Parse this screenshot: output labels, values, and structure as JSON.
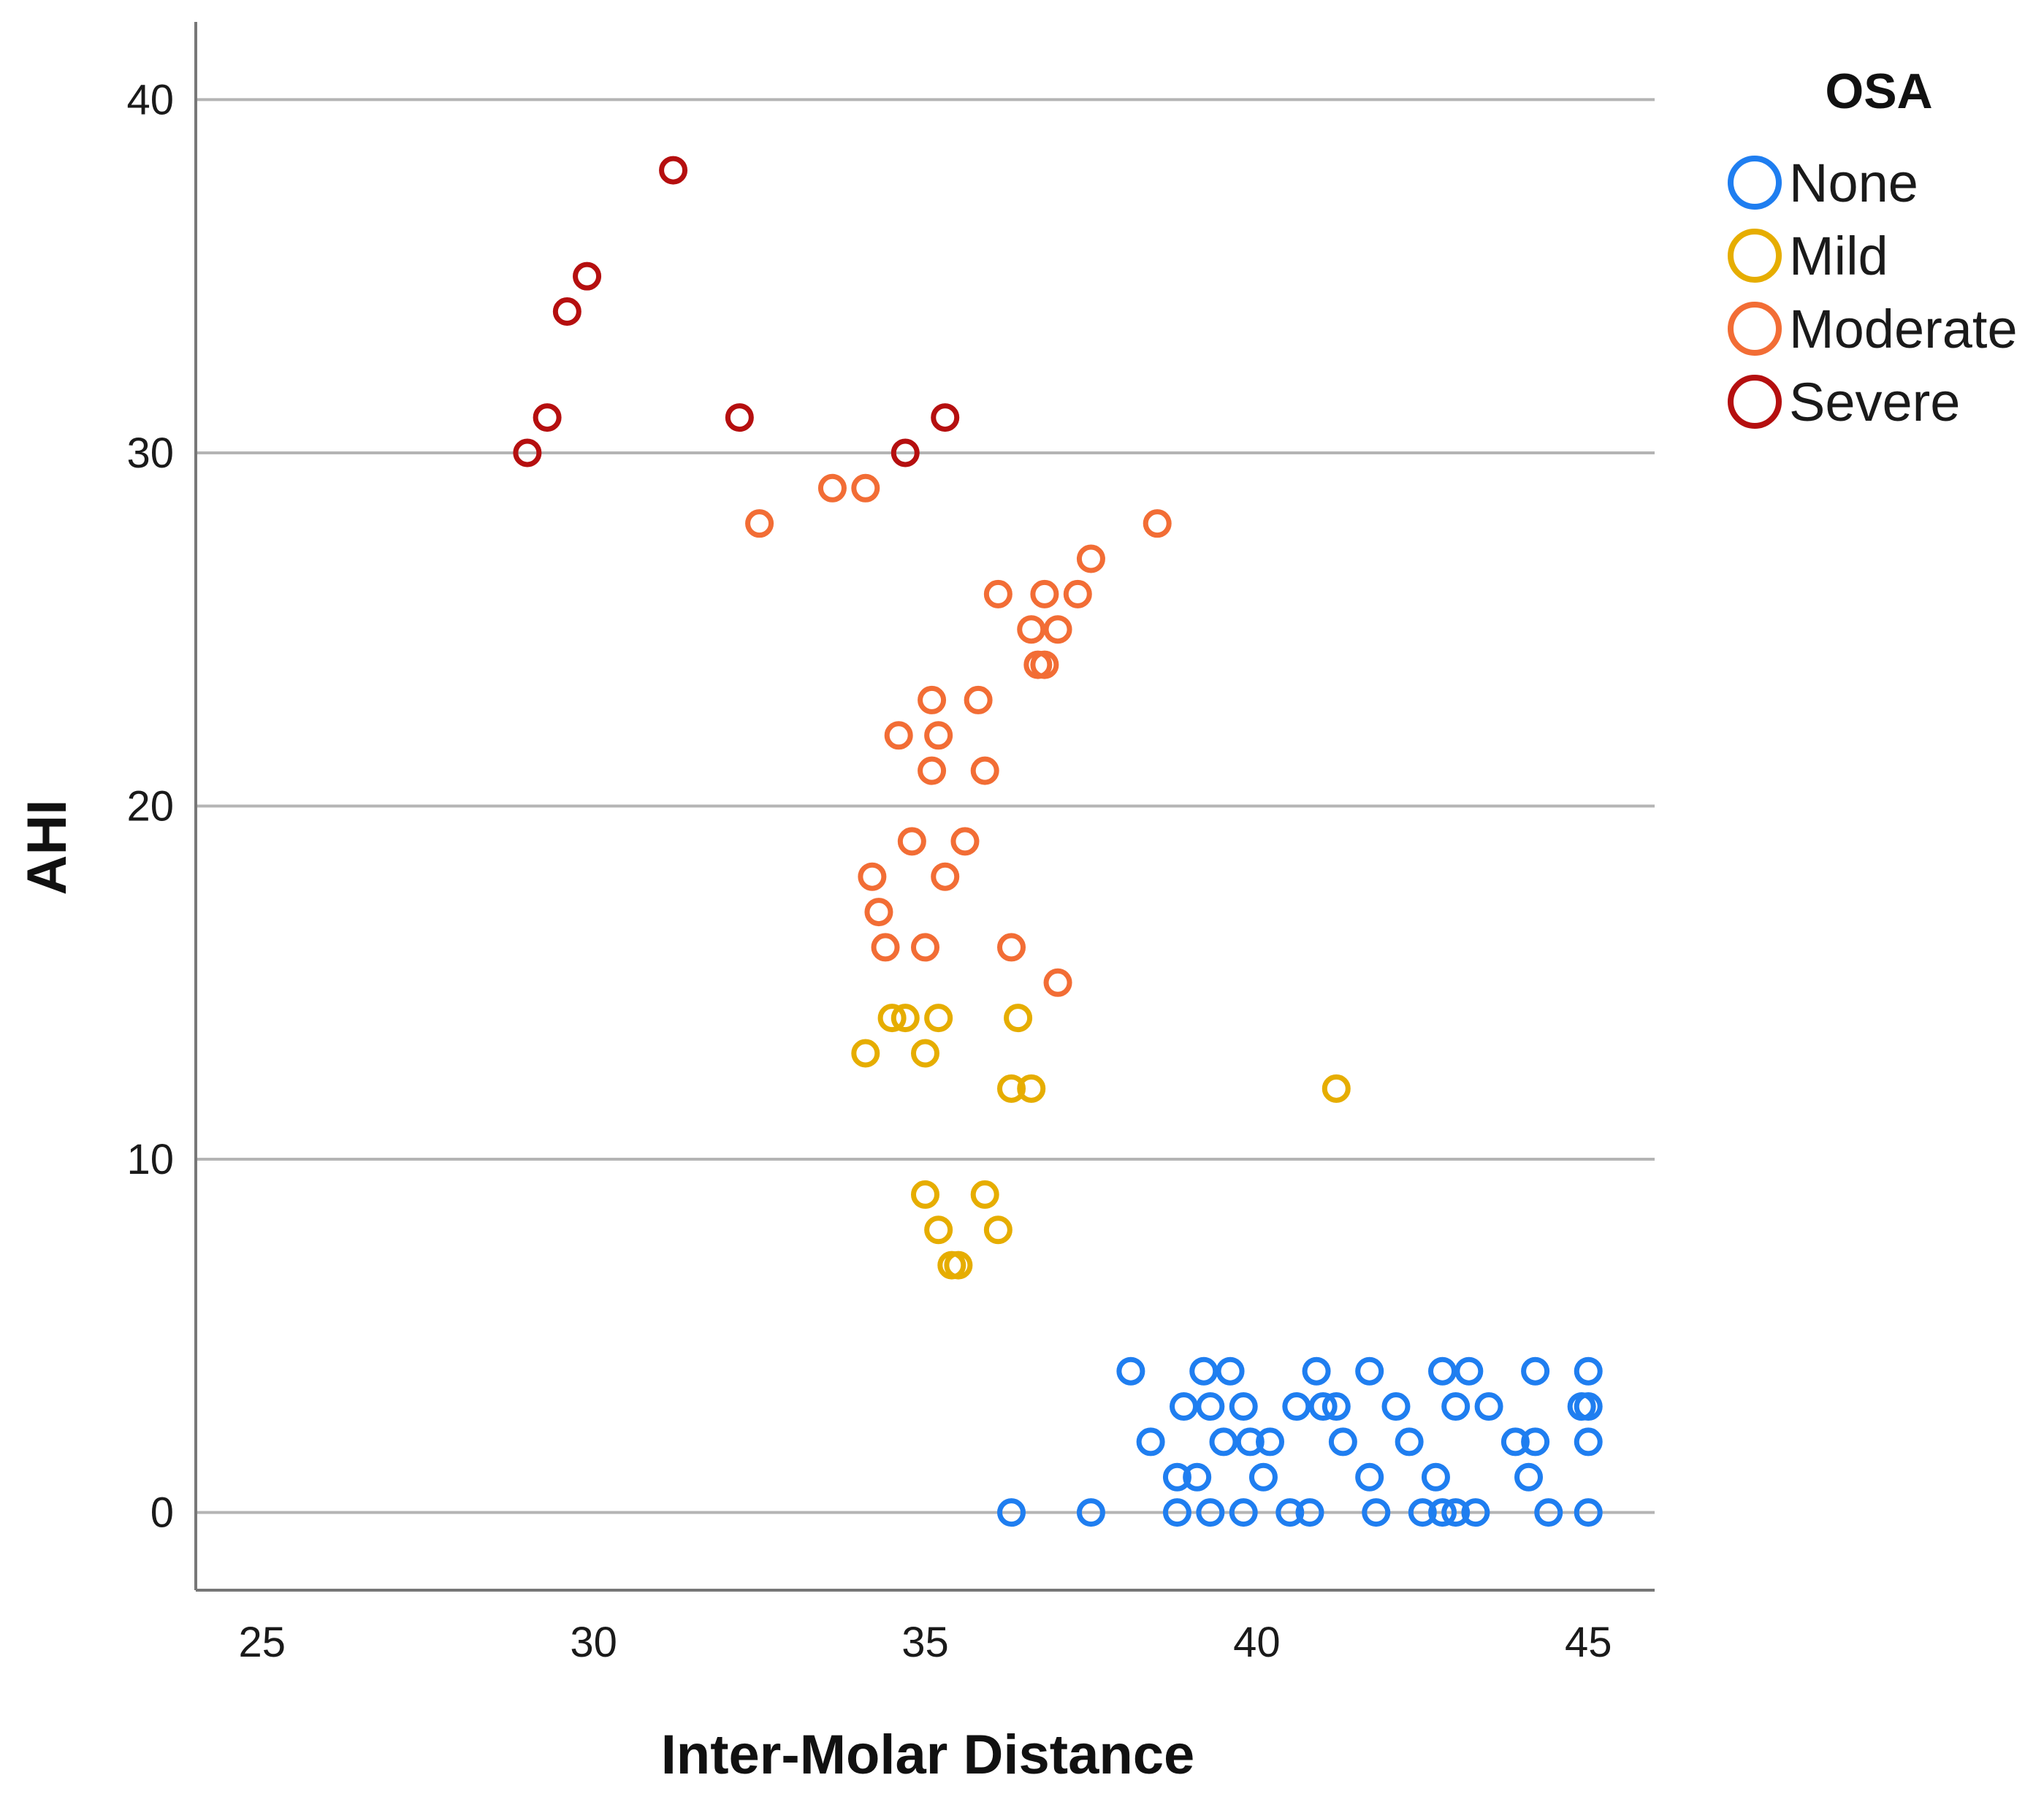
{
  "chart_data": {
    "type": "scatter",
    "title": "",
    "xlabel": "Inter-Molar Distance",
    "ylabel": "AHI",
    "xlim": [
      24,
      46
    ],
    "ylim": [
      -2.2,
      42.2
    ],
    "x_ticks": [
      "25",
      "30",
      "35",
      "40",
      "45"
    ],
    "y_ticks": [
      "0",
      "10",
      "20",
      "30",
      "40"
    ],
    "grid": "horizontal",
    "legend": {
      "title": "OSA",
      "placement": "right",
      "entries": [
        "None",
        "Mild",
        "Moderate",
        "Severe"
      ]
    },
    "series": [
      {
        "name": "None",
        "color": "#1f7ef0",
        "points": [
          [
            38.1,
            4
          ],
          [
            39.2,
            4
          ],
          [
            39.6,
            4
          ],
          [
            40.9,
            4
          ],
          [
            41.7,
            4
          ],
          [
            42.8,
            4
          ],
          [
            43.2,
            4
          ],
          [
            44.2,
            4
          ],
          [
            45.0,
            4
          ],
          [
            38.9,
            3
          ],
          [
            39.3,
            3
          ],
          [
            39.8,
            3
          ],
          [
            40.6,
            3
          ],
          [
            41.0,
            3
          ],
          [
            41.2,
            3
          ],
          [
            42.1,
            3
          ],
          [
            43.0,
            3
          ],
          [
            43.5,
            3
          ],
          [
            44.9,
            3
          ],
          [
            45.0,
            3
          ],
          [
            38.4,
            2
          ],
          [
            39.5,
            2
          ],
          [
            39.9,
            2
          ],
          [
            40.2,
            2
          ],
          [
            41.3,
            2
          ],
          [
            42.3,
            2
          ],
          [
            43.9,
            2
          ],
          [
            44.2,
            2
          ],
          [
            45.0,
            2
          ],
          [
            38.8,
            1
          ],
          [
            39.1,
            1
          ],
          [
            40.1,
            1
          ],
          [
            41.7,
            1
          ],
          [
            42.7,
            1
          ],
          [
            44.1,
            1
          ],
          [
            36.3,
            0
          ],
          [
            37.5,
            0
          ],
          [
            38.8,
            0
          ],
          [
            39.3,
            0
          ],
          [
            39.8,
            0
          ],
          [
            40.5,
            0
          ],
          [
            40.8,
            0
          ],
          [
            41.8,
            0
          ],
          [
            42.5,
            0
          ],
          [
            42.8,
            0
          ],
          [
            43.0,
            0
          ],
          [
            43.3,
            0
          ],
          [
            44.4,
            0
          ],
          [
            45.0,
            0
          ]
        ]
      },
      {
        "name": "Mild",
        "color": "#e6ad00",
        "points": [
          [
            34.5,
            14
          ],
          [
            34.7,
            14
          ],
          [
            35.2,
            14
          ],
          [
            36.4,
            14
          ],
          [
            34.1,
            13
          ],
          [
            35.0,
            13
          ],
          [
            36.3,
            12
          ],
          [
            36.6,
            12
          ],
          [
            41.2,
            12
          ],
          [
            35.0,
            9
          ],
          [
            35.9,
            9
          ],
          [
            35.2,
            8
          ],
          [
            36.1,
            8
          ],
          [
            35.4,
            7
          ],
          [
            35.5,
            7
          ]
        ]
      },
      {
        "name": "Moderate",
        "color": "#f26d35",
        "points": [
          [
            33.6,
            29
          ],
          [
            34.1,
            29
          ],
          [
            32.5,
            28
          ],
          [
            38.5,
            28
          ],
          [
            37.5,
            27
          ],
          [
            36.1,
            26
          ],
          [
            36.8,
            26
          ],
          [
            37.3,
            26
          ],
          [
            36.6,
            25
          ],
          [
            37.0,
            25
          ],
          [
            36.7,
            24
          ],
          [
            36.8,
            24
          ],
          [
            35.1,
            23
          ],
          [
            35.8,
            23
          ],
          [
            34.6,
            22
          ],
          [
            35.2,
            22
          ],
          [
            35.1,
            21
          ],
          [
            35.9,
            21
          ],
          [
            34.8,
            19
          ],
          [
            35.6,
            19
          ],
          [
            34.2,
            18
          ],
          [
            35.3,
            18
          ],
          [
            34.3,
            17
          ],
          [
            34.4,
            16
          ],
          [
            35.0,
            16
          ],
          [
            36.3,
            16
          ],
          [
            37.0,
            15
          ]
        ]
      },
      {
        "name": "Severe",
        "color": "#b50f0f",
        "points": [
          [
            31.2,
            38
          ],
          [
            29.9,
            35
          ],
          [
            29.6,
            34
          ],
          [
            29.3,
            31
          ],
          [
            32.2,
            31
          ],
          [
            35.3,
            31
          ],
          [
            29.0,
            30
          ],
          [
            34.7,
            30
          ]
        ]
      }
    ]
  }
}
